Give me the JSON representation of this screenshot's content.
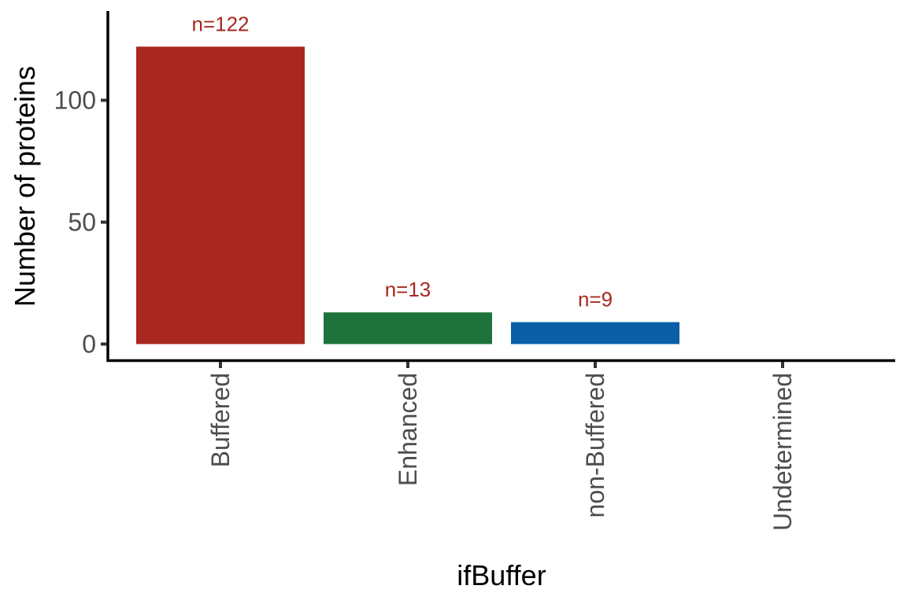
{
  "chart_data": {
    "type": "bar",
    "title": "",
    "xlabel": "ifBuffer",
    "ylabel": "Number of proteins",
    "categories": [
      "Buffered",
      "Enhanced",
      "non-Buffered",
      "Undetermined"
    ],
    "values": [
      122,
      13,
      9,
      0
    ],
    "data_labels": [
      "n=122",
      "n=13",
      "n=9",
      ""
    ],
    "bar_colors": [
      "#a8281f",
      "#1e733b",
      "#0a5fa6",
      "#888888"
    ],
    "label_color": "#a8281f",
    "y_ticks": [
      0,
      50,
      100
    ],
    "y_tick_labels": [
      "0",
      "50",
      "100"
    ],
    "ylim": [
      0,
      135
    ],
    "grid": false,
    "legend": "none"
  }
}
